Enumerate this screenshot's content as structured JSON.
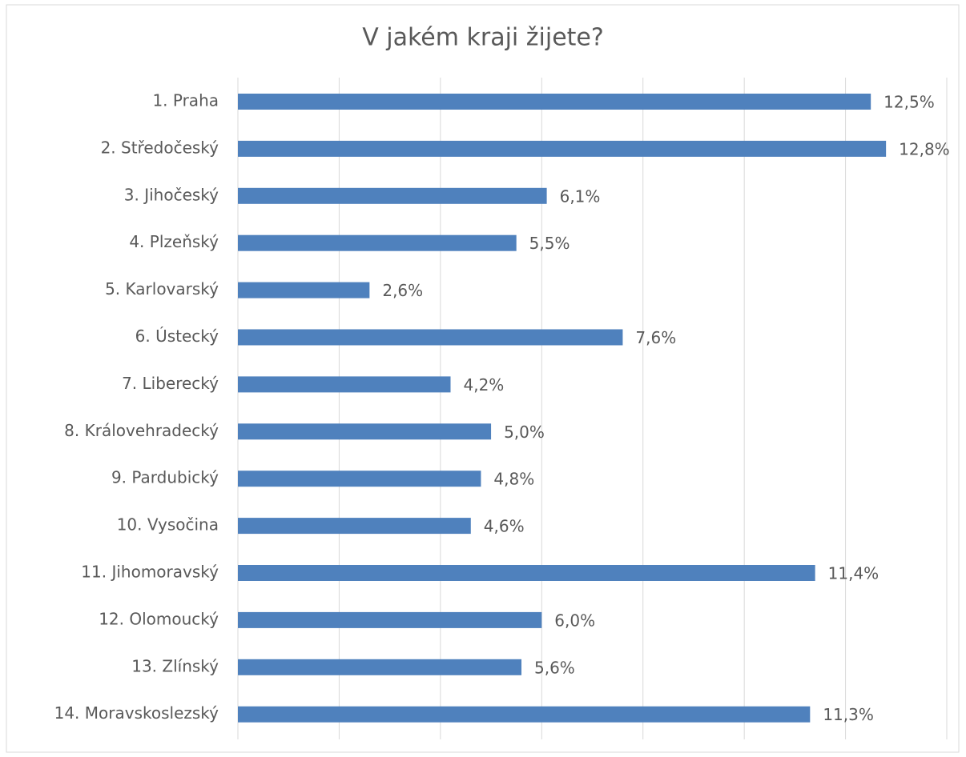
{
  "chart_data": {
    "type": "hbar",
    "title": "V jakém kraji žijete?",
    "categories": [
      "1. Praha",
      "2. Středočeský",
      "3. Jihočeský",
      "4. Plzeňský",
      "5. Karlovarský",
      "6. Ústecký",
      "7. Liberecký",
      "8. Královehradecký",
      "9. Pardubický",
      "10. Vysočina",
      "11. Jihomoravský",
      "12. Olomoucký",
      "13. Zlínský",
      "14. Moravskoslezský"
    ],
    "values": [
      12.5,
      12.8,
      6.1,
      5.5,
      2.6,
      7.6,
      4.2,
      5.0,
      4.8,
      4.6,
      11.4,
      6.0,
      5.6,
      11.3
    ],
    "value_labels": [
      "12,5%",
      "12,8%",
      "6,1%",
      "5,5%",
      "2,6%",
      "7,6%",
      "4,2%",
      "5,0%",
      "4,8%",
      "4,6%",
      "11,4%",
      "6,0%",
      "5,6%",
      "11,3%"
    ],
    "color": "#4f81bd",
    "xlim": [
      0,
      14
    ],
    "xticks": [
      0,
      2,
      4,
      6,
      8,
      10,
      12,
      14
    ],
    "grid": true
  }
}
